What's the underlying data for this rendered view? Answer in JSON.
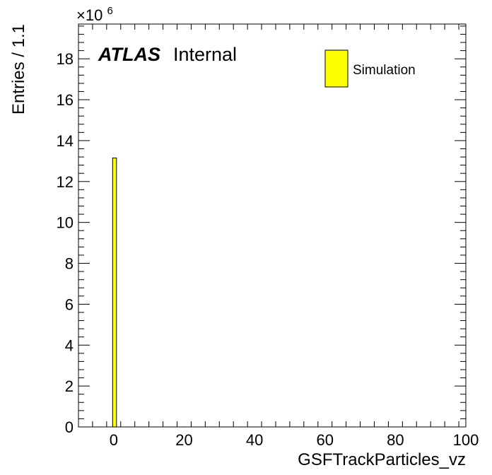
{
  "chart_data": {
    "type": "bar",
    "bin_width": 1.1,
    "xlabel": "GSFTrackParticles_vz",
    "ylabel": "Entries / 1.1",
    "y_multiplier_base": "×10",
    "y_multiplier_exp": "6",
    "xlim": [
      -10,
      100
    ],
    "ylim": [
      0,
      19.7
    ],
    "x_ticks": [
      0,
      20,
      40,
      60,
      80,
      100
    ],
    "y_ticks": [
      0,
      2,
      4,
      6,
      8,
      10,
      12,
      14,
      16,
      18
    ],
    "series": [
      {
        "name": "Simulation",
        "color": "#ffff00",
        "bins": [
          {
            "x_low": -0.3,
            "x_high": 0.8,
            "value": 13.15
          }
        ]
      }
    ],
    "annotation": {
      "experiment": "ATLAS",
      "status": "Internal"
    },
    "legend_placement": "top-right",
    "grid": false
  }
}
